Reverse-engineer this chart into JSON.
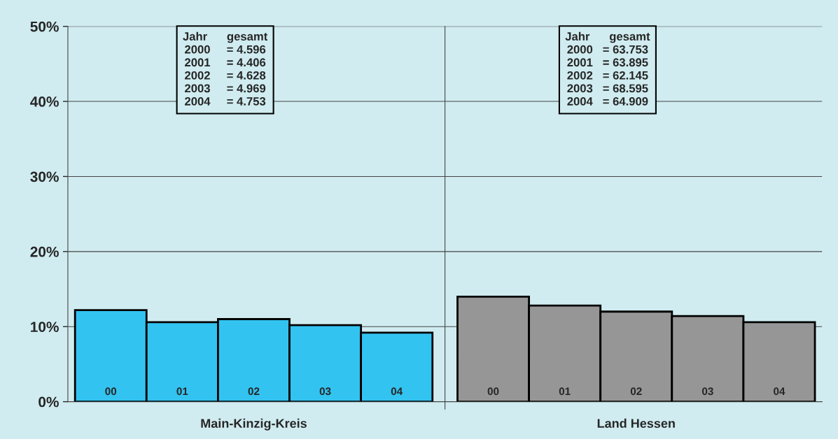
{
  "chart_data": {
    "type": "bar",
    "categories": [
      "00",
      "01",
      "02",
      "03",
      "04",
      "00",
      "01",
      "02",
      "03",
      "04"
    ],
    "series": [
      {
        "name": "Main-Kinzig-Kreis",
        "color": "#33c3f0",
        "values": [
          12.2,
          10.6,
          11.0,
          10.2,
          9.2,
          null,
          null,
          null,
          null,
          null
        ]
      },
      {
        "name": "Land Hessen",
        "color": "#969696",
        "values": [
          null,
          null,
          null,
          null,
          null,
          14.0,
          12.8,
          12.0,
          11.4,
          10.6
        ]
      }
    ],
    "ylim": [
      0,
      50
    ],
    "yticks": [
      {
        "value": 0,
        "label": "0%"
      },
      {
        "value": 10,
        "label": "10%"
      },
      {
        "value": 20,
        "label": "20%"
      },
      {
        "value": 30,
        "label": "30%"
      },
      {
        "value": 40,
        "label": "40%"
      },
      {
        "value": 50,
        "label": "50%"
      }
    ],
    "grid": "y",
    "annotations": [
      "Jahr      gesamt\n2000     = 4.596\n2001     = 4.406\n2002     = 4.628\n2003     = 4.969\n2004     = 4.753",
      "Jahr      gesamt\n2000   = 63.753\n2001   = 63.895\n2002   = 62.145\n2003   = 68.595\n2004   = 64.909"
    ]
  }
}
